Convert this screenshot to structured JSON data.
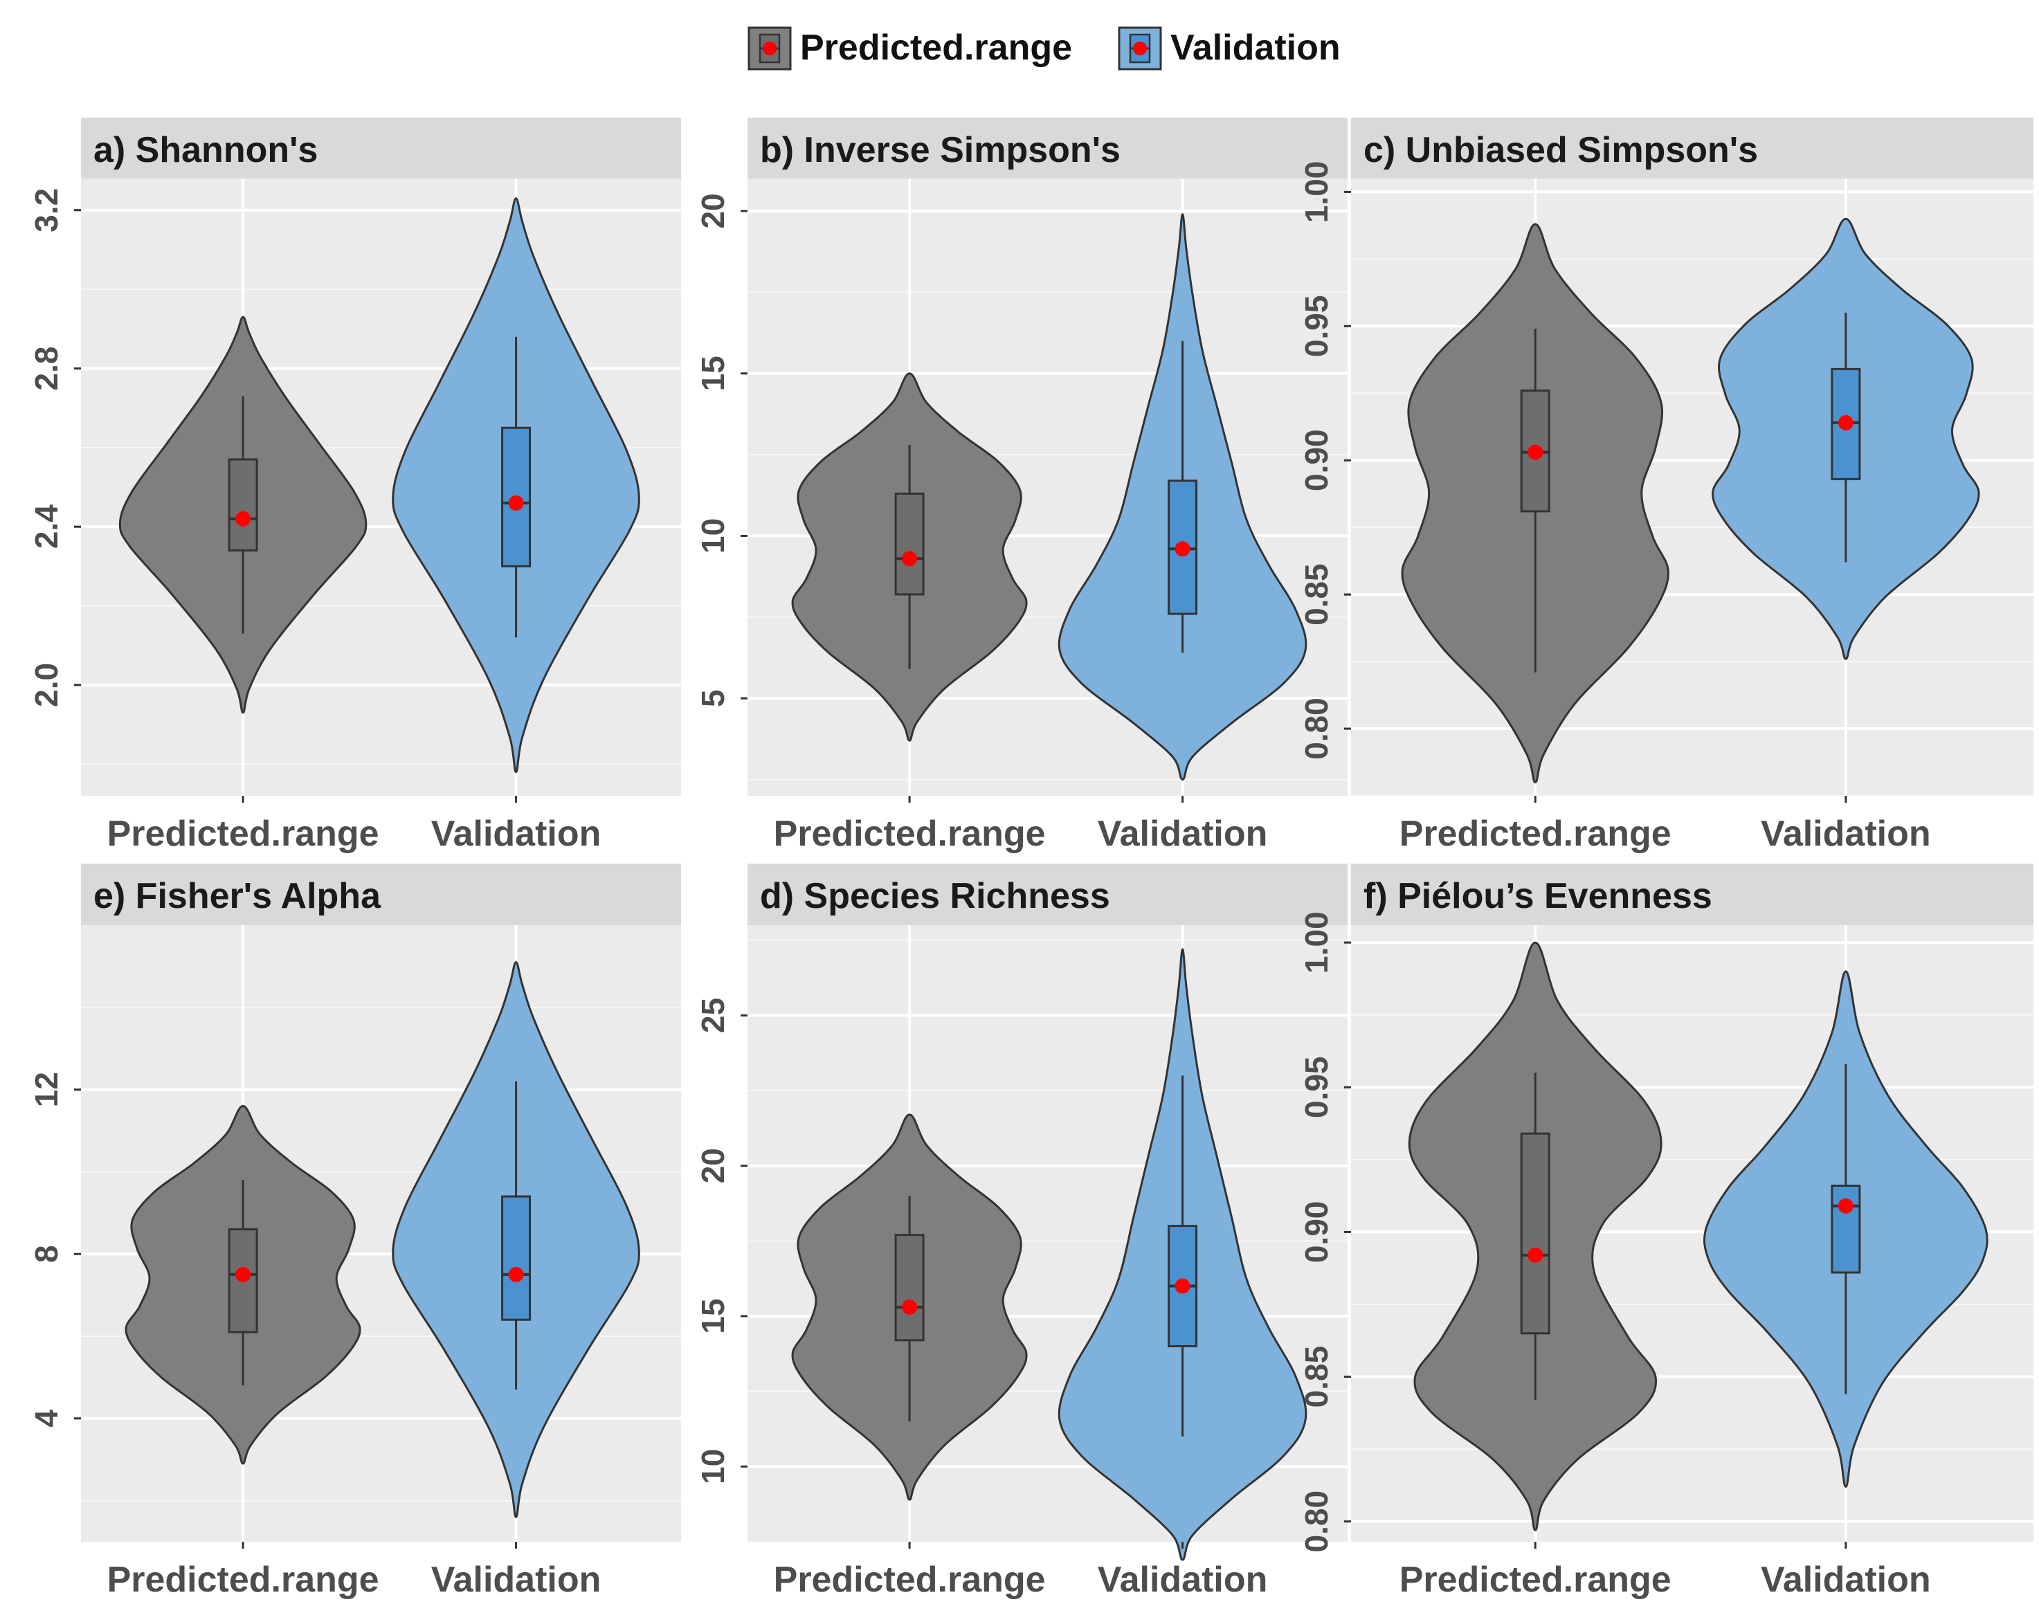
{
  "legend": {
    "items": [
      {
        "label": "Predicted.range",
        "fill": "#7f7f7f",
        "box": "#6e6e6e"
      },
      {
        "label": "Validation",
        "fill": "#7eb2dc",
        "box": "#4a92d0"
      }
    ]
  },
  "colors": {
    "panel_bg": "#ebebeb",
    "strip_bg": "#d9d9d9",
    "grid_major": "#ffffff",
    "mean_point": "#ff0000",
    "outline": "#333333"
  },
  "chart_data": [
    {
      "type": "violin",
      "title": "a) Shannon's",
      "categories": [
        "Predicted.range",
        "Validation"
      ],
      "ylim": [
        1.72,
        3.28
      ],
      "yticks": [
        2.0,
        2.4,
        2.8,
        3.2
      ],
      "ytick_labels": [
        "2.0",
        "2.4",
        "2.8",
        "3.2"
      ],
      "series": [
        {
          "name": "Predicted.range",
          "violin_min": 1.93,
          "violin_max": 2.93,
          "shape": "unimodal",
          "whisker_low": 2.13,
          "q1": 2.34,
          "median": 2.42,
          "q3": 2.57,
          "whisker_high": 2.73,
          "mean": 2.42
        },
        {
          "name": "Validation",
          "violin_min": 1.78,
          "violin_max": 3.23,
          "shape": "unimodal",
          "whisker_low": 2.12,
          "q1": 2.3,
          "median": 2.46,
          "q3": 2.65,
          "whisker_high": 2.88,
          "mean": 2.46
        }
      ]
    },
    {
      "type": "violin",
      "title": "b) Inverse Simpson's",
      "categories": [
        "Predicted.range",
        "Validation"
      ],
      "ylim": [
        2.0,
        21.0
      ],
      "yticks": [
        5,
        10,
        15,
        20
      ],
      "ytick_labels": [
        "5",
        "10",
        "15",
        "20"
      ],
      "series": [
        {
          "name": "Predicted.range",
          "violin_min": 3.7,
          "violin_max": 15.0,
          "shape": "bimodal",
          "whisker_low": 5.9,
          "q1": 8.2,
          "median": 9.3,
          "q3": 11.3,
          "whisker_high": 12.8,
          "mean": 9.3
        },
        {
          "name": "Validation",
          "violin_min": 2.5,
          "violin_max": 19.9,
          "shape": "right-skew",
          "whisker_low": 6.4,
          "q1": 7.6,
          "median": 9.6,
          "q3": 11.7,
          "whisker_high": 16.0,
          "mean": 9.6
        }
      ]
    },
    {
      "type": "violin",
      "title": "c) Unbiased Simpson's",
      "categories": [
        "Predicted.range",
        "Validation"
      ],
      "ylim": [
        0.775,
        1.005
      ],
      "yticks": [
        0.8,
        0.85,
        0.9,
        0.95,
        1.0
      ],
      "ytick_labels": [
        "0.80",
        "0.85",
        "0.90",
        "0.95",
        "1.00"
      ],
      "series": [
        {
          "name": "Predicted.range",
          "violin_min": 0.78,
          "violin_max": 0.988,
          "shape": "bimodal",
          "whisker_low": 0.821,
          "q1": 0.881,
          "median": 0.903,
          "q3": 0.926,
          "whisker_high": 0.949,
          "mean": 0.903
        },
        {
          "name": "Validation",
          "violin_min": 0.826,
          "violin_max": 0.99,
          "shape": "bimodal",
          "whisker_low": 0.862,
          "q1": 0.893,
          "median": 0.914,
          "q3": 0.934,
          "whisker_high": 0.955,
          "mean": 0.914
        }
      ]
    },
    {
      "type": "violin",
      "title": "e) Fisher's Alpha",
      "categories": [
        "Predicted.range",
        "Validation"
      ],
      "ylim": [
        1.0,
        16.0
      ],
      "yticks": [
        4,
        8,
        12
      ],
      "ytick_labels": [
        "4",
        "8",
        "12"
      ],
      "series": [
        {
          "name": "Predicted.range",
          "violin_min": 2.9,
          "violin_max": 11.6,
          "shape": "bimodal",
          "whisker_low": 4.8,
          "q1": 6.1,
          "median": 7.5,
          "q3": 8.6,
          "whisker_high": 9.8,
          "mean": 7.5
        },
        {
          "name": "Validation",
          "violin_min": 1.6,
          "violin_max": 15.1,
          "shape": "unimodal",
          "whisker_low": 4.7,
          "q1": 6.4,
          "median": 7.5,
          "q3": 9.4,
          "whisker_high": 12.2,
          "mean": 7.5
        }
      ]
    },
    {
      "type": "violin",
      "title": "d) Species Richness",
      "categories": [
        "Predicted.range",
        "Validation"
      ],
      "ylim": [
        7.5,
        28.0
      ],
      "yticks": [
        10,
        15,
        20,
        25
      ],
      "ytick_labels": [
        "10",
        "15",
        "20",
        "25"
      ],
      "series": [
        {
          "name": "Predicted.range",
          "violin_min": 8.9,
          "violin_max": 21.7,
          "shape": "bimodal",
          "whisker_low": 11.5,
          "q1": 14.2,
          "median": 15.3,
          "q3": 17.7,
          "whisker_high": 19.0,
          "mean": 15.3
        },
        {
          "name": "Validation",
          "violin_min": 6.9,
          "violin_max": 27.2,
          "shape": "right-skew",
          "whisker_low": 11.0,
          "q1": 14.0,
          "median": 16.0,
          "q3": 18.0,
          "whisker_high": 23.0,
          "mean": 16.0
        }
      ]
    },
    {
      "type": "violin",
      "title": "f) Piélou’s Evenness",
      "categories": [
        "Predicted.range",
        "Validation"
      ],
      "ylim": [
        0.793,
        1.006
      ],
      "yticks": [
        0.8,
        0.85,
        0.9,
        0.95,
        1.0
      ],
      "ytick_labels": [
        "0.80",
        "0.85",
        "0.90",
        "0.95",
        "1.00"
      ],
      "series": [
        {
          "name": "Predicted.range",
          "violin_min": 0.797,
          "violin_max": 1.0,
          "shape": "bimodal-strong",
          "whisker_low": 0.842,
          "q1": 0.865,
          "median": 0.892,
          "q3": 0.934,
          "whisker_high": 0.955,
          "mean": 0.892
        },
        {
          "name": "Validation",
          "violin_min": 0.812,
          "violin_max": 0.99,
          "shape": "unimodal-tight",
          "whisker_low": 0.844,
          "q1": 0.886,
          "median": 0.909,
          "q3": 0.916,
          "whisker_high": 0.958,
          "mean": 0.909
        }
      ]
    }
  ]
}
